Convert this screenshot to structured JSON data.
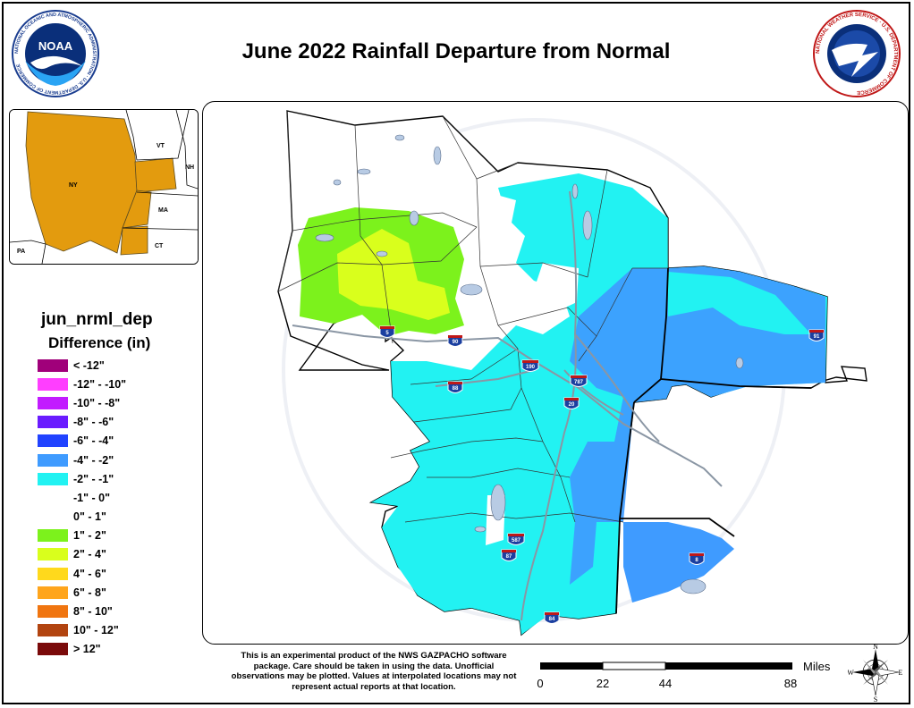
{
  "title": "June 2022 Rainfall Departure from Normal",
  "logos": {
    "noaa_text": "NOAA",
    "noaa_ring": "NATIONAL OCEANIC AND ATMOSPHERIC ADMINISTRATION · U.S. DEPARTMENT OF COMMERCE",
    "nws_ring": "NATIONAL WEATHER SERVICE · U.S. DEPARTMENT OF COMMERCE"
  },
  "inset_map": {
    "labels": [
      "NY",
      "VT",
      "NH",
      "MA",
      "CT",
      "PA"
    ]
  },
  "legend": {
    "field": "jun_nrml_dep",
    "subtitle": "Difference (in)",
    "items": [
      {
        "label": "< -12\"",
        "color": "#A0007A"
      },
      {
        "label": "-12\" - -10\"",
        "color": "#FF3EFF"
      },
      {
        "label": "-10\" - -8\"",
        "color": "#C21BFF"
      },
      {
        "label": "-8\" - -6\"",
        "color": "#6A1BFF"
      },
      {
        "label": "-6\" - -4\"",
        "color": "#2143FF"
      },
      {
        "label": "-4\" - -2\"",
        "color": "#3F9BFF"
      },
      {
        "label": "-2\" - -1\"",
        "color": "#22F2F2"
      },
      {
        "label": "-1\" - 0\"",
        "color": "#FFFFFF"
      },
      {
        "label": "0\" - 1\"",
        "color": "#FFFFFF"
      },
      {
        "label": "1\" - 2\"",
        "color": "#7CF21C"
      },
      {
        "label": "2\" - 4\"",
        "color": "#D9FF1C"
      },
      {
        "label": "4\" - 6\"",
        "color": "#FFD91C"
      },
      {
        "label": "6\" - 8\"",
        "color": "#FFA51C"
      },
      {
        "label": "8\" - 10\"",
        "color": "#F07510"
      },
      {
        "label": "10\" - 12\"",
        "color": "#B24410"
      },
      {
        "label": "> 12\"",
        "color": "#7A0A0A"
      }
    ]
  },
  "highways": [
    "5",
    "90",
    "88",
    "190",
    "787",
    "20",
    "87",
    "587",
    "84",
    "91",
    "8"
  ],
  "disclaimer": "This is an experimental product of the NWS GAZPACHO software package. Care should be taken in using the data. Unofficial observations may be plotted. Values at interpolated locations may not represent actual reports at that location.",
  "scale_bar": {
    "unit": "Miles",
    "ticks": [
      "0",
      "22",
      "44",
      "88"
    ]
  },
  "compass": {
    "n": "N",
    "s": "S",
    "e": "E",
    "w": "W"
  },
  "watermark": "NATIONAL WEATHER SERVICE · U.S. DEPARTMENT OF COMMERCE"
}
